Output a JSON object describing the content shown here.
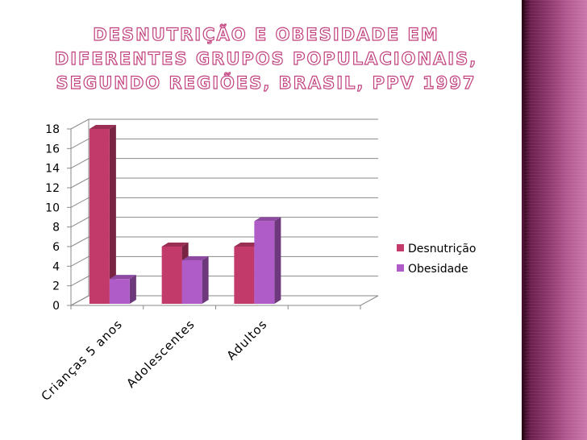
{
  "slide": {
    "title": "Desnutrição e obesidade em diferentes grupos populacionais, segundo Regiões, Brasil, PPV 1997"
  },
  "colors": {
    "desnutricao": "#c23a6a",
    "obesidade": "#b05cc8",
    "title_outline": "#c2407e",
    "side_band": "#8f3a6f"
  },
  "chart_data": {
    "type": "bar",
    "categories": [
      "Crianças 5 anos",
      "Adolescentes",
      "Adultos",
      ""
    ],
    "series": [
      {
        "name": "Desnutrição",
        "values": [
          18,
          6,
          6,
          null
        ]
      },
      {
        "name": "Obesidade",
        "values": [
          2.7,
          4.6,
          8.6,
          null
        ]
      }
    ],
    "ylim": [
      0,
      18
    ],
    "yticks": [
      0,
      2,
      4,
      6,
      8,
      10,
      12,
      14,
      16,
      18
    ],
    "grid": true,
    "legend": "right",
    "style": "3d-clustered-column"
  }
}
